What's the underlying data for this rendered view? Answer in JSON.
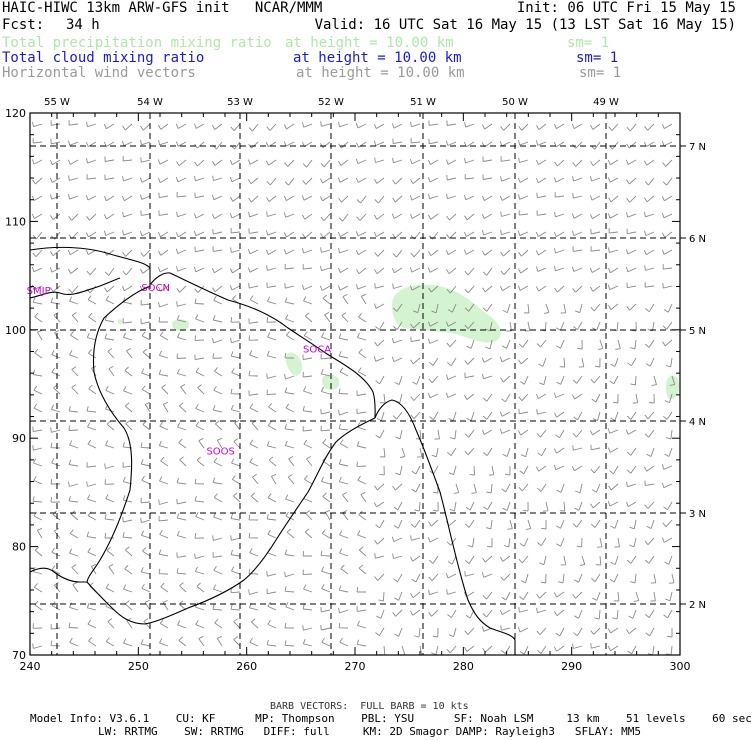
{
  "header": {
    "title": "HAIC-HIWC 13km ARW-GFS init   NCAR/MMM",
    "init": "Init: 06 UTC Fri 15 May 15",
    "fcst_label": "Fcst:",
    "fcst_value": "34 h",
    "valid": "Valid: 16 UTC Sat 16 May 15 (13 LST Sat 16 May 15)",
    "fields": [
      {
        "name": "Total precipitation mixing ratio",
        "level": "at height = 10.00 km",
        "sm": "sm= 1",
        "color": "#aee8aa"
      },
      {
        "name": "Total cloud mixing ratio",
        "level": "at height = 10.00 km",
        "sm": "sm= 1",
        "color": "#1a1ad6"
      },
      {
        "name": "Horizontal wind vectors",
        "level": "at height = 10.00 km",
        "sm": "sm= 1",
        "color": "#9a9a9a"
      }
    ]
  },
  "map": {
    "top_lon_labels": [
      "55 W",
      "54 W",
      "53 W",
      "52 W",
      "51 W",
      "50 W",
      "49 W"
    ],
    "right_lat_labels": [
      "7 N",
      "6 N",
      "5 N",
      "4 N",
      "3 N",
      "2 N"
    ],
    "x_ticks": [
      "240",
      "250",
      "260",
      "270",
      "280",
      "290",
      "300"
    ],
    "y_ticks": [
      "70",
      "80",
      "90",
      "100",
      "110",
      "120"
    ],
    "x_range": [
      240,
      300
    ],
    "y_range": [
      70,
      120
    ],
    "stations": [
      {
        "name": "SMJP",
        "x": 240.8,
        "y": 103.3
      },
      {
        "name": "SOCN",
        "x": 251.6,
        "y": 103.6
      },
      {
        "name": "SOCA",
        "x": 266.5,
        "y": 97.9
      },
      {
        "name": "SOOS",
        "x": 257.6,
        "y": 88.5
      }
    ],
    "precip_color": "#d4f3d1",
    "coast_color": "#000000",
    "station_color": "#cc00cc"
  },
  "footer": {
    "barb": "BARB VECTORS:  FULL BARB = 10 kts",
    "line1": "Model Info: V3.6.1    CU: KF      MP: Thompson    PBL: YSU      SF: Noah LSM     13 km    51 levels    60 sec",
    "line2": "LW: RRTMG    SW: RRTMG   DIFF: full     KM: 2D Smagor DAMP: Rayleigh3   SFLAY: MM5"
  }
}
